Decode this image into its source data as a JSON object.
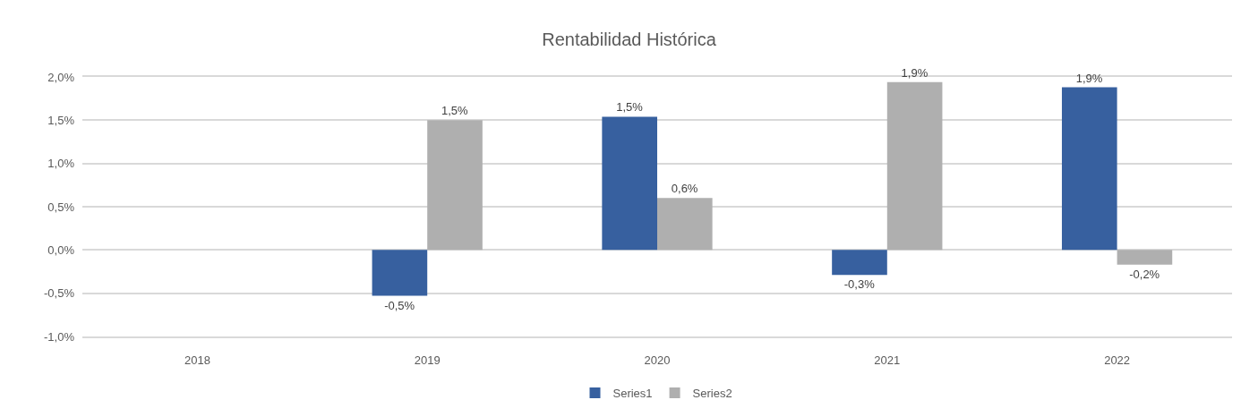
{
  "chart_data": {
    "type": "bar",
    "title": "Rentabilidad Histórica",
    "categories": [
      "2018",
      "2019",
      "2020",
      "2021",
      "2022"
    ],
    "series": [
      {
        "name": "Series1",
        "color": "#37609f",
        "values": [
          null,
          -0.53,
          1.54,
          -0.29,
          1.88
        ],
        "value_labels": [
          null,
          "-0,5%",
          "1,5%",
          "-0,3%",
          "1,9%"
        ]
      },
      {
        "name": "Series2",
        "color": "#afafaf",
        "values": [
          null,
          1.5,
          0.6,
          1.94,
          -0.17
        ],
        "value_labels": [
          null,
          "1,5%",
          "0,6%",
          "1,9%",
          "-0,2%"
        ]
      }
    ],
    "ylim": [
      -1,
      2
    ],
    "yticks": [
      {
        "value": -1,
        "label": "-1,0%"
      },
      {
        "value": -0.5,
        "label": "-0,5%"
      },
      {
        "value": 0,
        "label": "0,0%"
      },
      {
        "value": 0.5,
        "label": "0,5%"
      },
      {
        "value": 1,
        "label": "1,0%"
      },
      {
        "value": 1.5,
        "label": "1,5%"
      },
      {
        "value": 2,
        "label": "2,0%"
      }
    ],
    "grid": "y",
    "legend": "bottom"
  }
}
